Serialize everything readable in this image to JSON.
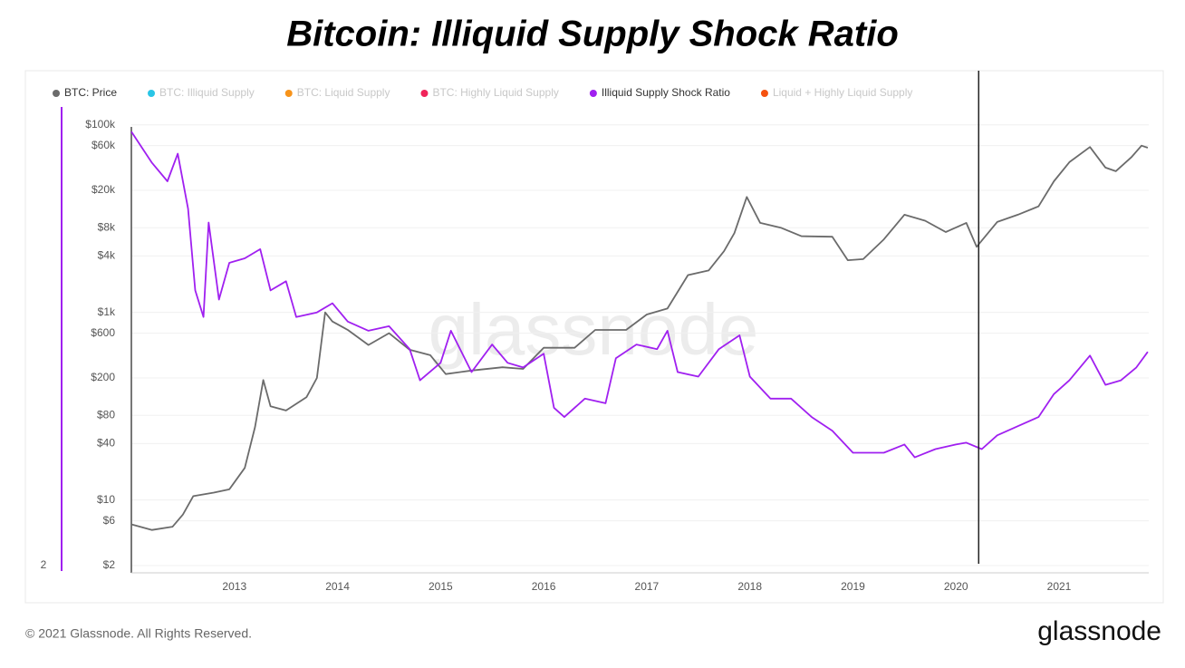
{
  "title": "Bitcoin: Illiquid Supply Shock Ratio",
  "footer": "© 2021 Glassnode. All Rights Reserved.",
  "logo": "glassnode",
  "chart_data": {
    "type": "line",
    "watermark": "glassnode",
    "xlim": [
      2012.0,
      2021.87
    ],
    "xticks": [
      2013,
      2014,
      2015,
      2016,
      2017,
      2018,
      2019,
      2020,
      2021
    ],
    "yscale": "log",
    "ylim": [
      2,
      155000
    ],
    "yticks": [
      {
        "value": 2,
        "label": "$2"
      },
      {
        "value": 6,
        "label": "$6"
      },
      {
        "value": 10,
        "label": "$10"
      },
      {
        "value": 40,
        "label": "$40"
      },
      {
        "value": 80,
        "label": "$80"
      },
      {
        "value": 200,
        "label": "$200"
      },
      {
        "value": 600,
        "label": "$600"
      },
      {
        "value": 1000,
        "label": "$1k"
      },
      {
        "value": 4000,
        "label": "$4k"
      },
      {
        "value": 8000,
        "label": "$8k"
      },
      {
        "value": 20000,
        "label": "$20k"
      },
      {
        "value": 60000,
        "label": "$60k"
      },
      {
        "value": 100000,
        "label": "$100k"
      }
    ],
    "y2lim": [
      2,
      7
    ],
    "y2ticks": [
      2
    ],
    "grid": true,
    "vline": 2020.22,
    "series": [
      {
        "name": "BTC: Price",
        "color": "#6b6b6b",
        "visible": true,
        "x": [
          2012.0,
          2012.2,
          2012.4,
          2012.5,
          2012.6,
          2012.8,
          2012.95,
          2013.1,
          2013.2,
          2013.28,
          2013.35,
          2013.5,
          2013.7,
          2013.8,
          2013.88,
          2013.95,
          2014.1,
          2014.3,
          2014.5,
          2014.7,
          2014.9,
          2015.05,
          2015.3,
          2015.6,
          2015.8,
          2016.0,
          2016.3,
          2016.5,
          2016.8,
          2017.0,
          2017.2,
          2017.4,
          2017.6,
          2017.75,
          2017.85,
          2017.97,
          2018.1,
          2018.3,
          2018.5,
          2018.8,
          2018.95,
          2019.1,
          2019.3,
          2019.5,
          2019.7,
          2019.9,
          2020.1,
          2020.2,
          2020.4,
          2020.6,
          2020.8,
          2020.95,
          2021.1,
          2021.3,
          2021.45,
          2021.55,
          2021.7,
          2021.8,
          2021.86
        ],
        "values": [
          5.5,
          4.8,
          5.2,
          7,
          11,
          12,
          13,
          22,
          60,
          190,
          100,
          90,
          125,
          200,
          1000,
          800,
          650,
          450,
          600,
          400,
          350,
          220,
          240,
          260,
          250,
          420,
          420,
          650,
          650,
          950,
          1100,
          2500,
          2800,
          4500,
          7000,
          17000,
          9000,
          8000,
          6500,
          6400,
          3600,
          3700,
          6000,
          11000,
          9500,
          7200,
          9000,
          5000,
          9200,
          11000,
          13500,
          25000,
          40000,
          58000,
          35000,
          32000,
          45000,
          60000,
          57000
        ]
      },
      {
        "name": "BTC: Illiquid Supply",
        "color": "#29c5e6",
        "visible": false
      },
      {
        "name": "BTC: Liquid Supply",
        "color": "#f7931a",
        "visible": false
      },
      {
        "name": "BTC: Highly Liquid Supply",
        "color": "#f0245a",
        "visible": false
      },
      {
        "name": "Illiquid Supply Shock Ratio",
        "color": "#a020f0",
        "visible": true,
        "axis": "y2",
        "x": [
          2012.0,
          2012.2,
          2012.35,
          2012.45,
          2012.55,
          2012.62,
          2012.7,
          2012.75,
          2012.85,
          2012.95,
          2013.1,
          2013.25,
          2013.35,
          2013.5,
          2013.6,
          2013.8,
          2013.95,
          2014.1,
          2014.3,
          2014.5,
          2014.7,
          2014.8,
          2015.0,
          2015.1,
          2015.3,
          2015.5,
          2015.65,
          2015.8,
          2016.0,
          2016.1,
          2016.2,
          2016.4,
          2016.6,
          2016.7,
          2016.9,
          2017.1,
          2017.2,
          2017.3,
          2017.5,
          2017.7,
          2017.9,
          2018.0,
          2018.2,
          2018.4,
          2018.6,
          2018.8,
          2019.0,
          2019.3,
          2019.5,
          2019.6,
          2019.8,
          2020.0,
          2020.1,
          2020.25,
          2020.4,
          2020.6,
          2020.8,
          2020.95,
          2021.1,
          2021.3,
          2021.45,
          2021.6,
          2021.75,
          2021.86
        ],
        "values": [
          6.73,
          6.39,
          6.19,
          6.49,
          5.89,
          5.0,
          4.71,
          5.74,
          4.9,
          5.3,
          5.35,
          5.45,
          5.0,
          5.1,
          4.71,
          4.76,
          4.86,
          4.66,
          4.56,
          4.61,
          4.36,
          4.02,
          4.21,
          4.56,
          4.11,
          4.41,
          4.21,
          4.16,
          4.31,
          3.72,
          3.62,
          3.82,
          3.77,
          4.26,
          4.41,
          4.36,
          4.56,
          4.11,
          4.06,
          4.36,
          4.51,
          4.06,
          3.82,
          3.82,
          3.62,
          3.47,
          3.23,
          3.23,
          3.32,
          3.18,
          3.27,
          3.32,
          3.34,
          3.27,
          3.42,
          3.52,
          3.62,
          3.87,
          4.02,
          4.29,
          3.97,
          4.02,
          4.16,
          4.33
        ]
      },
      {
        "name": "Liquid + Highly Liquid Supply",
        "color": "#f5520f",
        "visible": false
      }
    ]
  }
}
